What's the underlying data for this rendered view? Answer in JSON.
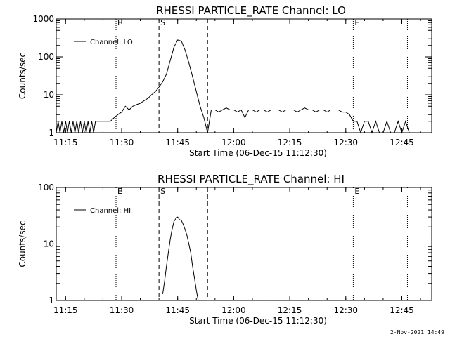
{
  "timestamp": "2-Nov-2021 14:49",
  "chart_data": [
    {
      "type": "line",
      "title": "RHESSI PARTICLE_RATE Channel: LO",
      "xlabel": "Start Time (06-Dec-15 11:12:30)",
      "ylabel": "Counts/sec",
      "legend": {
        "entry": "Channel: LO",
        "placement": "top-left"
      },
      "xlim": [
        "11:12:30",
        "12:53:00"
      ],
      "ylim": [
        1,
        1000
      ],
      "yscale": "log",
      "xticks": [
        "11:15",
        "11:30",
        "11:45",
        "12:00",
        "12:15",
        "12:30",
        "12:45"
      ],
      "yticks": [
        "1",
        "10",
        "100",
        "1000"
      ],
      "vlines": [
        {
          "time": "11:28:30",
          "style": "dotted",
          "label": "E"
        },
        {
          "time": "11:40:00",
          "style": "dashed",
          "label": "S"
        },
        {
          "time": "11:53:00",
          "style": "dashed",
          "label": ""
        },
        {
          "time": "12:32:00",
          "style": "dotted",
          "label": "E"
        },
        {
          "time": "12:46:30",
          "style": "dotted",
          "label": ""
        }
      ],
      "series": [
        {
          "name": "Channel: LO",
          "points": [
            [
              "11:12:30",
              1
            ],
            [
              "11:13:00",
              2
            ],
            [
              "11:13:30",
              1
            ],
            [
              "11:14:00",
              2
            ],
            [
              "11:14:30",
              1
            ],
            [
              "11:15:00",
              2
            ],
            [
              "11:15:30",
              1
            ],
            [
              "11:16:00",
              2
            ],
            [
              "11:16:30",
              1
            ],
            [
              "11:17:00",
              2
            ],
            [
              "11:17:30",
              1
            ],
            [
              "11:18:00",
              2
            ],
            [
              "11:18:30",
              1
            ],
            [
              "11:19:00",
              2
            ],
            [
              "11:19:30",
              1
            ],
            [
              "11:20:00",
              2
            ],
            [
              "11:20:30",
              1
            ],
            [
              "11:21:00",
              2
            ],
            [
              "11:21:30",
              1
            ],
            [
              "11:22:00",
              2
            ],
            [
              "11:22:30",
              1
            ],
            [
              "11:23:00",
              2
            ],
            [
              "11:24:00",
              2
            ],
            [
              "11:25:00",
              2
            ],
            [
              "11:26:00",
              2
            ],
            [
              "11:27:00",
              2
            ],
            [
              "11:28:00",
              2.5
            ],
            [
              "11:29:00",
              3
            ],
            [
              "11:30:00",
              3.5
            ],
            [
              "11:31:00",
              5
            ],
            [
              "11:32:00",
              4
            ],
            [
              "11:33:00",
              5
            ],
            [
              "11:34:00",
              5.5
            ],
            [
              "11:35:00",
              6
            ],
            [
              "11:36:00",
              7
            ],
            [
              "11:37:00",
              8
            ],
            [
              "11:38:00",
              10
            ],
            [
              "11:39:00",
              12
            ],
            [
              "11:40:00",
              16
            ],
            [
              "11:41:00",
              22
            ],
            [
              "11:42:00",
              35
            ],
            [
              "11:43:00",
              80
            ],
            [
              "11:44:00",
              180
            ],
            [
              "11:45:00",
              280
            ],
            [
              "11:46:00",
              260
            ],
            [
              "11:47:00",
              150
            ],
            [
              "11:48:00",
              70
            ],
            [
              "11:49:00",
              30
            ],
            [
              "11:50:00",
              12
            ],
            [
              "11:51:00",
              5
            ],
            [
              "11:52:00",
              2.5
            ],
            [
              "11:53:00",
              1
            ],
            [
              "11:54:00",
              4
            ],
            [
              "11:55:00",
              4
            ],
            [
              "11:56:00",
              3.5
            ],
            [
              "11:57:00",
              4
            ],
            [
              "11:58:00",
              4.5
            ],
            [
              "11:59:00",
              4
            ],
            [
              "12:00:00",
              4
            ],
            [
              "12:01:00",
              3.5
            ],
            [
              "12:02:00",
              4
            ],
            [
              "12:03:00",
              2.5
            ],
            [
              "12:04:00",
              4
            ],
            [
              "12:05:00",
              4
            ],
            [
              "12:06:00",
              3.5
            ],
            [
              "12:07:00",
              4
            ],
            [
              "12:08:00",
              4
            ],
            [
              "12:09:00",
              3.5
            ],
            [
              "12:10:00",
              4
            ],
            [
              "12:11:00",
              4
            ],
            [
              "12:12:00",
              4
            ],
            [
              "12:13:00",
              3.5
            ],
            [
              "12:14:00",
              4
            ],
            [
              "12:15:00",
              4
            ],
            [
              "12:16:00",
              4
            ],
            [
              "12:17:00",
              3.5
            ],
            [
              "12:18:00",
              4
            ],
            [
              "12:19:00",
              4.5
            ],
            [
              "12:20:00",
              4
            ],
            [
              "12:21:00",
              4
            ],
            [
              "12:22:00",
              3.5
            ],
            [
              "12:23:00",
              4
            ],
            [
              "12:24:00",
              4
            ],
            [
              "12:25:00",
              3.5
            ],
            [
              "12:26:00",
              4
            ],
            [
              "12:27:00",
              4
            ],
            [
              "12:28:00",
              4
            ],
            [
              "12:29:00",
              3.5
            ],
            [
              "12:30:00",
              3.5
            ],
            [
              "12:31:00",
              3
            ],
            [
              "12:32:00",
              2
            ],
            [
              "12:33:00",
              2
            ],
            [
              "12:34:00",
              1
            ],
            [
              "12:35:00",
              2
            ],
            [
              "12:36:00",
              2
            ],
            [
              "12:37:00",
              1
            ],
            [
              "12:38:00",
              2
            ],
            [
              "12:39:00",
              1
            ],
            [
              "12:40:00",
              1
            ],
            [
              "12:41:00",
              2
            ],
            [
              "12:42:00",
              1
            ],
            [
              "12:43:00",
              1
            ],
            [
              "12:44:00",
              2
            ],
            [
              "12:45:00",
              1
            ],
            [
              "12:46:00",
              2
            ],
            [
              "12:47:00",
              1
            ]
          ]
        }
      ]
    },
    {
      "type": "line",
      "title": "RHESSI PARTICLE_RATE Channel: HI",
      "xlabel": "Start Time (06-Dec-15 11:12:30)",
      "ylabel": "Counts/sec",
      "legend": {
        "entry": "Channel: HI",
        "placement": "top-left"
      },
      "xlim": [
        "11:12:30",
        "12:53:00"
      ],
      "ylim": [
        1,
        100
      ],
      "yscale": "log",
      "xticks": [
        "11:15",
        "11:30",
        "11:45",
        "12:00",
        "12:15",
        "12:30",
        "12:45"
      ],
      "yticks": [
        "1",
        "10",
        "100"
      ],
      "vlines": [
        {
          "time": "11:28:30",
          "style": "dotted",
          "label": "E"
        },
        {
          "time": "11:40:00",
          "style": "dashed",
          "label": "S"
        },
        {
          "time": "11:53:00",
          "style": "dashed",
          "label": ""
        },
        {
          "time": "12:32:00",
          "style": "dotted",
          "label": "E"
        },
        {
          "time": "12:46:30",
          "style": "dotted",
          "label": ""
        }
      ],
      "series": [
        {
          "name": "Channel: HI",
          "points": [
            [
              "11:41:00",
              1.3
            ],
            [
              "11:41:30",
              2.2
            ],
            [
              "11:42:00",
              4
            ],
            [
              "11:42:30",
              7
            ],
            [
              "11:43:00",
              12
            ],
            [
              "11:43:30",
              18
            ],
            [
              "11:44:00",
              25
            ],
            [
              "11:44:30",
              28
            ],
            [
              "11:45:00",
              30
            ],
            [
              "11:45:30",
              27
            ],
            [
              "11:46:00",
              26
            ],
            [
              "11:46:30",
              22
            ],
            [
              "11:47:00",
              18
            ],
            [
              "11:47:30",
              14
            ],
            [
              "11:48:00",
              10
            ],
            [
              "11:48:30",
              7
            ],
            [
              "11:49:00",
              4
            ],
            [
              "11:49:30",
              2.5
            ],
            [
              "11:50:00",
              1.5
            ],
            [
              "11:50:30",
              1
            ]
          ]
        }
      ]
    }
  ]
}
